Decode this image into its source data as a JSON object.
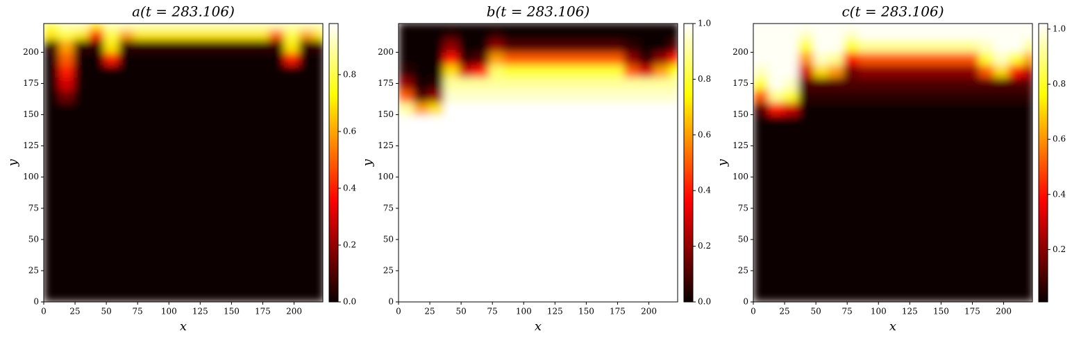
{
  "chart_data": [
    {
      "type": "heatmap",
      "title": "a(t = 283.106)",
      "xlabel": "x",
      "ylabel": "y",
      "colormap": "hot",
      "xbins": [
        0,
        12,
        24,
        36,
        48,
        60,
        72,
        84,
        96,
        108,
        120,
        132,
        144,
        156,
        168,
        180,
        192,
        204,
        216,
        224
      ],
      "ybins": [
        0,
        140,
        150,
        160,
        170,
        180,
        190,
        200,
        210,
        218,
        224
      ],
      "z": [
        [
          0,
          0,
          0,
          0,
          0,
          0,
          0,
          0,
          0,
          0,
          0,
          0,
          0,
          0,
          0,
          0,
          0,
          0,
          0
        ],
        [
          0,
          0,
          0,
          0,
          0,
          0,
          0,
          0,
          0,
          0,
          0,
          0,
          0,
          0,
          0,
          0,
          0,
          0,
          0
        ],
        [
          0,
          0,
          0,
          0,
          0,
          0,
          0,
          0,
          0,
          0,
          0,
          0,
          0,
          0,
          0,
          0,
          0,
          0,
          0
        ],
        [
          0,
          0.15,
          0,
          0,
          0,
          0,
          0,
          0,
          0,
          0,
          0,
          0,
          0,
          0,
          0,
          0,
          0,
          0,
          0
        ],
        [
          0,
          0.3,
          0,
          0,
          0,
          0,
          0,
          0,
          0,
          0,
          0,
          0,
          0,
          0,
          0,
          0,
          0,
          0,
          0
        ],
        [
          0,
          0.4,
          0,
          0,
          0,
          0,
          0,
          0,
          0,
          0,
          0,
          0,
          0,
          0,
          0,
          0,
          0,
          0,
          0
        ],
        [
          0,
          0.5,
          0,
          0,
          0.4,
          0,
          0,
          0,
          0,
          0,
          0,
          0,
          0,
          0,
          0,
          0,
          0.4,
          0,
          0
        ],
        [
          0.05,
          0.6,
          0.05,
          0.05,
          0.7,
          0.05,
          0.05,
          0.05,
          0.05,
          0.05,
          0.05,
          0.05,
          0.05,
          0.05,
          0.05,
          0.05,
          0.7,
          0.05,
          0.05
        ],
        [
          0.7,
          0.8,
          0.7,
          0.4,
          0.8,
          0.6,
          0.7,
          0.7,
          0.7,
          0.7,
          0.7,
          0.7,
          0.7,
          0.7,
          0.7,
          0.5,
          0.8,
          0.6,
          0.7
        ],
        [
          0.8,
          0.9,
          0.9,
          0.7,
          0.9,
          0.9,
          0.9,
          0.9,
          0.9,
          0.9,
          0.9,
          0.9,
          0.9,
          0.9,
          0.9,
          0.9,
          0.9,
          0.9,
          0.9
        ]
      ],
      "xlim": [
        0,
        223
      ],
      "ylim": [
        0,
        223
      ],
      "xticks": [
        0,
        25,
        50,
        75,
        100,
        125,
        150,
        175,
        200
      ],
      "yticks": [
        0,
        25,
        50,
        75,
        100,
        125,
        150,
        175,
        200
      ],
      "clim": [
        0,
        0.98
      ],
      "cticks": [
        {
          "value": 0,
          "label": "0.0"
        },
        {
          "value": 0.2,
          "label": "0.2"
        },
        {
          "value": 0.4,
          "label": "0.4"
        },
        {
          "value": 0.6,
          "label": "0.6"
        },
        {
          "value": 0.8,
          "label": "0.8"
        }
      ]
    },
    {
      "type": "heatmap",
      "title": "b(t = 283.106)",
      "xlabel": "x",
      "ylabel": "y",
      "colormap": "hot",
      "xbins": [
        0,
        12,
        24,
        36,
        48,
        60,
        72,
        84,
        96,
        108,
        120,
        132,
        144,
        156,
        168,
        180,
        192,
        204,
        216,
        224
      ],
      "ybins": [
        0,
        140,
        150,
        160,
        170,
        180,
        190,
        200,
        210,
        218,
        224
      ],
      "z": [
        [
          1,
          1,
          1,
          1,
          1,
          1,
          1,
          1,
          1,
          1,
          1,
          1,
          1,
          1,
          1,
          1,
          1,
          1,
          1
        ],
        [
          1,
          1,
          1,
          1,
          1,
          1,
          1,
          1,
          1,
          1,
          1,
          1,
          1,
          1,
          1,
          1,
          1,
          1,
          1
        ],
        [
          0.9,
          0.6,
          0.7,
          1,
          1,
          1,
          1,
          1,
          1,
          1,
          1,
          1,
          1,
          1,
          1,
          1,
          1,
          1,
          1
        ],
        [
          0.5,
          0.1,
          0.2,
          0.95,
          0.95,
          0.95,
          0.95,
          0.95,
          0.95,
          0.95,
          0.95,
          0.95,
          0.95,
          0.95,
          0.95,
          0.95,
          0.95,
          0.95,
          0.95
        ],
        [
          0.2,
          0,
          0.05,
          0.9,
          0.9,
          0.9,
          0.9,
          0.9,
          0.9,
          0.9,
          0.9,
          0.9,
          0.9,
          0.9,
          0.9,
          0.9,
          0.9,
          0.9,
          0.9
        ],
        [
          0.05,
          0,
          0,
          0.7,
          0.3,
          0.4,
          0.85,
          0.8,
          0.8,
          0.8,
          0.8,
          0.8,
          0.8,
          0.8,
          0.8,
          0.5,
          0.3,
          0.6,
          0.75
        ],
        [
          0,
          0,
          0,
          0.4,
          0.05,
          0.1,
          0.6,
          0.5,
          0.5,
          0.5,
          0.5,
          0.5,
          0.5,
          0.5,
          0.5,
          0.2,
          0.05,
          0.2,
          0.4
        ],
        [
          0,
          0,
          0,
          0.2,
          0,
          0,
          0.2,
          0.1,
          0.1,
          0.1,
          0.1,
          0.1,
          0.1,
          0.1,
          0.1,
          0.05,
          0,
          0,
          0.1
        ],
        [
          0,
          0,
          0,
          0.05,
          0,
          0,
          0.05,
          0,
          0,
          0,
          0,
          0,
          0,
          0,
          0,
          0,
          0,
          0,
          0
        ],
        [
          0,
          0,
          0,
          0,
          0,
          0,
          0,
          0,
          0,
          0,
          0,
          0,
          0,
          0,
          0,
          0,
          0,
          0,
          0
        ]
      ],
      "xlim": [
        0,
        223
      ],
      "ylim": [
        0,
        223
      ],
      "xticks": [
        0,
        25,
        50,
        75,
        100,
        125,
        150,
        175,
        200
      ],
      "yticks": [
        0,
        25,
        50,
        75,
        100,
        125,
        150,
        175,
        200
      ],
      "clim": [
        0,
        1
      ],
      "cticks": [
        {
          "value": 0,
          "label": "0.0"
        },
        {
          "value": 0.2,
          "label": "0.2"
        },
        {
          "value": 0.4,
          "label": "0.4"
        },
        {
          "value": 0.6,
          "label": "0.6"
        },
        {
          "value": 0.8,
          "label": "0.8"
        },
        {
          "value": 1,
          "label": "1.0"
        }
      ]
    },
    {
      "type": "heatmap",
      "title": "c(t = 283.106)",
      "xlabel": "x",
      "ylabel": "y",
      "colormap": "hot",
      "xbins": [
        0,
        12,
        24,
        36,
        48,
        60,
        72,
        84,
        96,
        108,
        120,
        132,
        144,
        156,
        168,
        180,
        192,
        204,
        216,
        224
      ],
      "ybins": [
        0,
        140,
        150,
        160,
        170,
        180,
        190,
        200,
        210,
        218,
        224
      ],
      "z": [
        [
          0.01,
          0.01,
          0.01,
          0.01,
          0.01,
          0.01,
          0.01,
          0.01,
          0.01,
          0.01,
          0.01,
          0.01,
          0.01,
          0.01,
          0.01,
          0.01,
          0.01,
          0.01,
          0.01
        ],
        [
          0.01,
          0.01,
          0.01,
          0.01,
          0.01,
          0.01,
          0.01,
          0.01,
          0.01,
          0.01,
          0.01,
          0.01,
          0.01,
          0.01,
          0.01,
          0.01,
          0.01,
          0.01,
          0.01
        ],
        [
          0.11,
          0.41,
          0.31,
          0.01,
          0.01,
          0.01,
          0.01,
          0.01,
          0.01,
          0.01,
          0.01,
          0.01,
          0.01,
          0.01,
          0.01,
          0.01,
          0.01,
          0.01,
          0.01
        ],
        [
          0.51,
          0.91,
          0.81,
          0.06,
          0.06,
          0.06,
          0.06,
          0.06,
          0.06,
          0.06,
          0.06,
          0.06,
          0.06,
          0.06,
          0.06,
          0.06,
          0.06,
          0.06,
          0.06
        ],
        [
          0.81,
          1.01,
          0.96,
          0.11,
          0.11,
          0.11,
          0.11,
          0.11,
          0.11,
          0.11,
          0.11,
          0.11,
          0.11,
          0.11,
          0.11,
          0.11,
          0.11,
          0.11,
          0.11
        ],
        [
          0.96,
          1.01,
          1.01,
          0.31,
          0.71,
          0.61,
          0.16,
          0.21,
          0.21,
          0.21,
          0.21,
          0.21,
          0.21,
          0.21,
          0.21,
          0.51,
          0.71,
          0.41,
          0.26
        ],
        [
          1.01,
          1.01,
          1.01,
          0.61,
          0.96,
          0.91,
          0.41,
          0.51,
          0.51,
          0.51,
          0.51,
          0.51,
          0.51,
          0.51,
          0.51,
          0.81,
          0.96,
          0.81,
          0.61
        ],
        [
          1.01,
          1.01,
          1.01,
          0.81,
          1.01,
          1.01,
          0.81,
          0.91,
          0.91,
          0.91,
          0.91,
          0.91,
          0.91,
          0.91,
          0.91,
          0.96,
          1.01,
          1.01,
          0.91
        ],
        [
          1.01,
          1.01,
          1.01,
          0.96,
          1.01,
          1.01,
          0.96,
          1.01,
          1.01,
          1.01,
          1.01,
          1.01,
          1.01,
          1.01,
          1.01,
          1.01,
          1.01,
          1.01,
          1.01
        ],
        [
          1.01,
          1.01,
          1.01,
          1.01,
          1.01,
          1.01,
          1.01,
          1.01,
          1.01,
          1.01,
          1.01,
          1.01,
          1.01,
          1.01,
          1.01,
          1.01,
          1.01,
          1.01,
          1.01
        ]
      ],
      "xlim": [
        0,
        223
      ],
      "ylim": [
        0,
        223
      ],
      "xticks": [
        0,
        25,
        50,
        75,
        100,
        125,
        150,
        175,
        200
      ],
      "yticks": [
        0,
        25,
        50,
        75,
        100,
        125,
        150,
        175,
        200
      ],
      "clim": [
        0.01,
        1.02
      ],
      "cticks": [
        {
          "value": 0.2,
          "label": "0.2"
        },
        {
          "value": 0.4,
          "label": "0.4"
        },
        {
          "value": 0.6,
          "label": "0.6"
        },
        {
          "value": 0.8,
          "label": "0.8"
        },
        {
          "value": 1,
          "label": "1.0"
        }
      ]
    }
  ]
}
